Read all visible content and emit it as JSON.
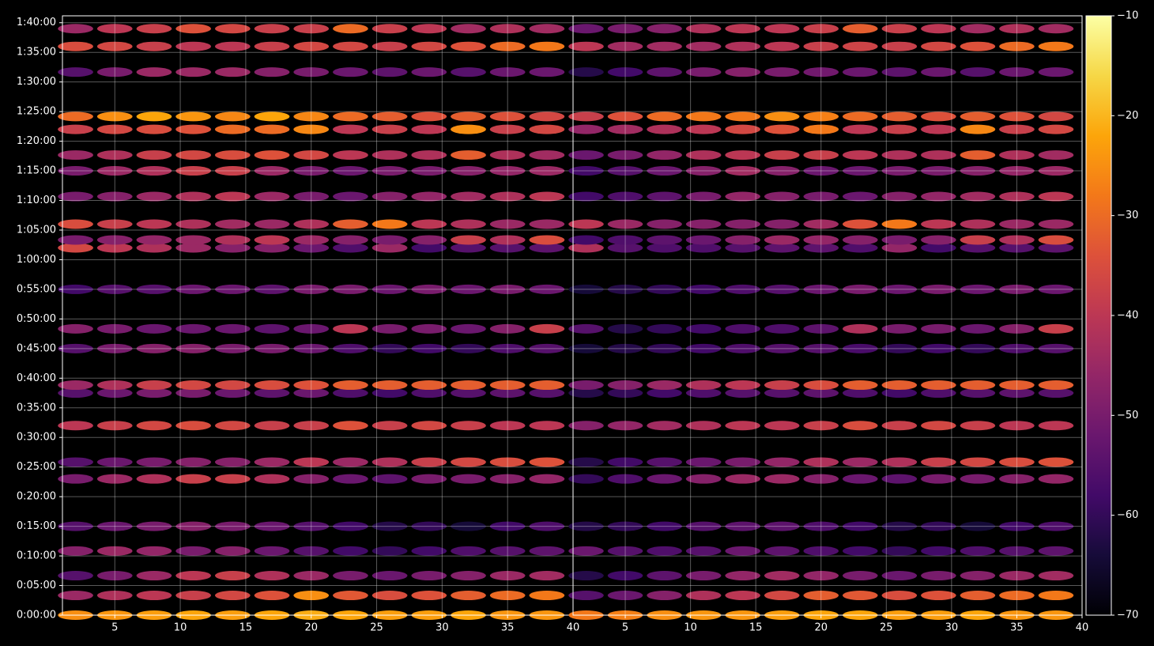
{
  "chart_data": [
    {
      "type": "heatmap",
      "xlim": [
        1,
        40
      ],
      "ylim": [
        0,
        6070
      ],
      "xticks": [
        5,
        10,
        15,
        20,
        25,
        30,
        35,
        40
      ],
      "yticks": [
        {
          "value": 0,
          "label": "0:00:00"
        },
        {
          "value": 300,
          "label": "0:05:00"
        },
        {
          "value": 600,
          "label": "0:10:00"
        },
        {
          "value": 900,
          "label": "0:15:00"
        },
        {
          "value": 1200,
          "label": "0:20:00"
        },
        {
          "value": 1500,
          "label": "0:25:00"
        },
        {
          "value": 1800,
          "label": "0:30:00"
        },
        {
          "value": 2100,
          "label": "0:35:00"
        },
        {
          "value": 2400,
          "label": "0:40:00"
        },
        {
          "value": 2700,
          "label": "0:45:00"
        },
        {
          "value": 3000,
          "label": "0:50:00"
        },
        {
          "value": 3300,
          "label": "0:55:00"
        },
        {
          "value": 3600,
          "label": "1:00:00"
        },
        {
          "value": 3900,
          "label": "1:05:00"
        },
        {
          "value": 4200,
          "label": "1:10:00"
        },
        {
          "value": 4500,
          "label": "1:15:00"
        },
        {
          "value": 4800,
          "label": "1:20:00"
        },
        {
          "value": 5100,
          "label": "1:25:00"
        },
        {
          "value": 5400,
          "label": "1:30:00"
        },
        {
          "value": 5700,
          "label": "1:35:00"
        },
        {
          "value": 6000,
          "label": "1:40:00"
        }
      ],
      "grid": true,
      "x": [
        2,
        5,
        8,
        11,
        14,
        17,
        20,
        23,
        26,
        29,
        32,
        35,
        38
      ],
      "y": [
        0,
        200,
        400,
        650,
        900,
        1380,
        1550,
        1920,
        2250,
        2330,
        2700,
        2900,
        3300,
        3720,
        3800,
        3960,
        4240,
        4500,
        4660,
        4920,
        5050,
        5500,
        5760,
        5940
      ],
      "values": [
        [
          -25,
          -24,
          -23,
          -22,
          -23,
          -22,
          -21,
          -22,
          -23,
          -23,
          -22,
          -24,
          -24
        ],
        [
          -45,
          -42,
          -40,
          -38,
          -36,
          -34,
          -25,
          -33,
          -35,
          -34,
          -32,
          -30,
          -28
        ],
        [
          -55,
          -50,
          -45,
          -40,
          -38,
          -42,
          -45,
          -50,
          -52,
          -50,
          -48,
          -45,
          -44
        ],
        [
          -48,
          -45,
          -46,
          -50,
          -48,
          -52,
          -55,
          -58,
          -60,
          -58,
          -56,
          -55,
          -54
        ],
        [
          -55,
          -52,
          -50,
          -48,
          -50,
          -52,
          -55,
          -58,
          -62,
          -60,
          -64,
          -58,
          -56
        ],
        [
          -50,
          -45,
          -42,
          -38,
          -38,
          -42,
          -48,
          -52,
          -54,
          -50,
          -50,
          -48,
          -46
        ],
        [
          -55,
          -52,
          -50,
          -48,
          -48,
          -45,
          -40,
          -45,
          -42,
          -38,
          -36,
          -35,
          -34
        ],
        [
          -40,
          -38,
          -36,
          -35,
          -36,
          -38,
          -38,
          -34,
          -38,
          -36,
          -38,
          -40,
          -40
        ],
        [
          -55,
          -52,
          -50,
          -50,
          -52,
          -54,
          -52,
          -56,
          -58,
          -56,
          -55,
          -54,
          -55
        ],
        [
          -45,
          -42,
          -38,
          -36,
          -36,
          -35,
          -34,
          -32,
          -32,
          -32,
          -32,
          -32,
          -32
        ],
        [
          -55,
          -50,
          -48,
          -48,
          -50,
          -50,
          -52,
          -56,
          -60,
          -58,
          -60,
          -56,
          -55
        ],
        [
          -48,
          -50,
          -52,
          -52,
          -52,
          -54,
          -52,
          -40,
          -50,
          -50,
          -52,
          -48,
          -38
        ],
        [
          -58,
          -55,
          -55,
          -52,
          -52,
          -54,
          -50,
          -50,
          -52,
          -50,
          -52,
          -50,
          -52
        ],
        [
          -36,
          -40,
          -42,
          -45,
          -48,
          -48,
          -52,
          -56,
          -45,
          -58,
          -55,
          -55,
          -54
        ],
        [
          -50,
          -48,
          -46,
          -45,
          -42,
          -40,
          -45,
          -48,
          -50,
          -48,
          -38,
          -42,
          -35
        ],
        [
          -35,
          -38,
          -40,
          -42,
          -44,
          -45,
          -42,
          -32,
          -28,
          -40,
          -42,
          -45,
          -45
        ],
        [
          -50,
          -48,
          -45,
          -42,
          -40,
          -45,
          -50,
          -52,
          -48,
          -46,
          -44,
          -42,
          -40
        ],
        [
          -50,
          -45,
          -42,
          -38,
          -38,
          -45,
          -50,
          -52,
          -50,
          -50,
          -48,
          -46,
          -45
        ],
        [
          -45,
          -42,
          -38,
          -36,
          -35,
          -34,
          -36,
          -40,
          -42,
          -42,
          -32,
          -42,
          -44
        ],
        [
          -38,
          -36,
          -35,
          -34,
          -30,
          -30,
          -26,
          -40,
          -38,
          -40,
          -25,
          -38,
          -36
        ],
        [
          -30,
          -25,
          -22,
          -24,
          -26,
          -22,
          -26,
          -30,
          -32,
          -34,
          -32,
          -34,
          -36
        ],
        [
          -55,
          -50,
          -45,
          -45,
          -45,
          -48,
          -50,
          -52,
          -54,
          -52,
          -55,
          -52,
          -52
        ],
        [
          -35,
          -36,
          -38,
          -40,
          -40,
          -38,
          -36,
          -36,
          -38,
          -36,
          -34,
          -30,
          -28
        ],
        [
          -45,
          -40,
          -38,
          -34,
          -36,
          -38,
          -38,
          -30,
          -38,
          -40,
          -44,
          -42,
          -44
        ]
      ]
    },
    {
      "type": "heatmap",
      "xlim": [
        1,
        40
      ],
      "ylim": [
        0,
        6070
      ],
      "xticks": [
        5,
        10,
        15,
        20,
        25,
        30,
        35,
        40
      ],
      "yticks": [
        0,
        300,
        600,
        900,
        1200,
        1500,
        1800,
        2100,
        2400,
        2700,
        3000,
        3300,
        3600,
        3900,
        4200,
        4500,
        4800,
        5100,
        5400,
        5700,
        6000
      ],
      "grid": true,
      "x": [
        2,
        5,
        8,
        11,
        14,
        17,
        20,
        23,
        26,
        29,
        32,
        35,
        38
      ],
      "y": [
        0,
        200,
        400,
        650,
        900,
        1380,
        1550,
        1920,
        2250,
        2330,
        2700,
        2900,
        3300,
        3720,
        3800,
        3960,
        4240,
        4500,
        4660,
        4920,
        5050,
        5500,
        5760,
        5940
      ],
      "values": [
        [
          -28,
          -27,
          -25,
          -24,
          -24,
          -23,
          -22,
          -22,
          -23,
          -23,
          -22,
          -24,
          -24
        ],
        [
          -55,
          -52,
          -48,
          -42,
          -40,
          -36,
          -32,
          -33,
          -35,
          -34,
          -32,
          -30,
          -28
        ],
        [
          -62,
          -58,
          -54,
          -50,
          -46,
          -44,
          -46,
          -50,
          -52,
          -50,
          -48,
          -45,
          -44
        ],
        [
          -52,
          -55,
          -56,
          -55,
          -52,
          -54,
          -56,
          -58,
          -60,
          -58,
          -56,
          -55,
          -54
        ],
        [
          -62,
          -60,
          -58,
          -55,
          -54,
          -54,
          -56,
          -58,
          -62,
          -60,
          -64,
          -58,
          -56
        ],
        [
          -60,
          -56,
          -52,
          -48,
          -45,
          -45,
          -48,
          -52,
          -54,
          -50,
          -50,
          -48,
          -46
        ],
        [
          -62,
          -58,
          -55,
          -52,
          -50,
          -46,
          -42,
          -45,
          -42,
          -38,
          -36,
          -35,
          -34
        ],
        [
          -48,
          -46,
          -44,
          -42,
          -40,
          -40,
          -38,
          -35,
          -38,
          -36,
          -38,
          -40,
          -40
        ],
        [
          -62,
          -60,
          -58,
          -56,
          -55,
          -55,
          -54,
          -56,
          -58,
          -56,
          -55,
          -54,
          -55
        ],
        [
          -50,
          -48,
          -45,
          -42,
          -40,
          -38,
          -35,
          -32,
          -32,
          -32,
          -32,
          -32,
          -32
        ],
        [
          -64,
          -62,
          -60,
          -58,
          -56,
          -55,
          -55,
          -57,
          -60,
          -58,
          -60,
          -56,
          -55
        ],
        [
          -55,
          -62,
          -60,
          -58,
          -56,
          -56,
          -54,
          -42,
          -50,
          -50,
          -52,
          -48,
          -38
        ],
        [
          -64,
          -62,
          -60,
          -58,
          -56,
          -55,
          -52,
          -50,
          -52,
          -50,
          -52,
          -50,
          -52
        ],
        [
          -42,
          -55,
          -56,
          -56,
          -55,
          -54,
          -54,
          -56,
          -46,
          -58,
          -55,
          -55,
          -54
        ],
        [
          -58,
          -56,
          -54,
          -52,
          -48,
          -45,
          -46,
          -48,
          -50,
          -48,
          -38,
          -42,
          -35
        ],
        [
          -40,
          -45,
          -48,
          -48,
          -48,
          -48,
          -44,
          -34,
          -28,
          -40,
          -42,
          -45,
          -45
        ],
        [
          -58,
          -56,
          -54,
          -50,
          -46,
          -48,
          -50,
          -52,
          -48,
          -46,
          -44,
          -42,
          -40
        ],
        [
          -58,
          -55,
          -52,
          -48,
          -44,
          -48,
          -52,
          -52,
          -50,
          -50,
          -48,
          -46,
          -45
        ],
        [
          -52,
          -50,
          -46,
          -42,
          -40,
          -38,
          -38,
          -40,
          -42,
          -42,
          -32,
          -42,
          -44
        ],
        [
          -46,
          -44,
          -42,
          -40,
          -36,
          -34,
          -28,
          -40,
          -38,
          -40,
          -26,
          -38,
          -36
        ],
        [
          -38,
          -34,
          -30,
          -28,
          -28,
          -25,
          -27,
          -30,
          -32,
          -34,
          -32,
          -34,
          -36
        ],
        [
          -62,
          -58,
          -54,
          -50,
          -48,
          -50,
          -51,
          -52,
          -54,
          -52,
          -55,
          -52,
          -52
        ],
        [
          -40,
          -44,
          -44,
          -44,
          -42,
          -40,
          -38,
          -37,
          -38,
          -36,
          -34,
          -30,
          -28
        ],
        [
          -52,
          -50,
          -48,
          -42,
          -40,
          -40,
          -38,
          -32,
          -38,
          -40,
          -44,
          -42,
          -44
        ]
      ]
    },
    {
      "type": "colorbar",
      "colormap": "inferno",
      "clim": [
        -70,
        -10
      ],
      "ticks": [
        {
          "value": -70,
          "label": "−70"
        },
        {
          "value": -60,
          "label": "−60"
        },
        {
          "value": -50,
          "label": "−50"
        },
        {
          "value": -40,
          "label": "−40"
        },
        {
          "value": -30,
          "label": "−30"
        },
        {
          "value": -20,
          "label": "−20"
        },
        {
          "value": -10,
          "label": "−10"
        }
      ]
    }
  ]
}
